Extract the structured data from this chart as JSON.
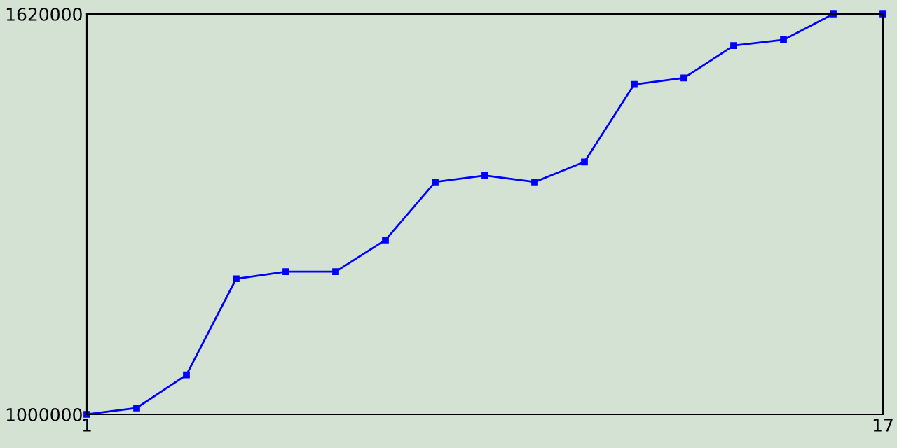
{
  "chart_data": {
    "type": "line",
    "x": [
      1,
      2,
      3,
      4,
      5,
      6,
      7,
      8,
      9,
      10,
      11,
      12,
      13,
      14,
      15,
      16,
      17
    ],
    "series": [
      {
        "color": "#0000ff",
        "values": [
          1000000,
          1010000,
          1061000,
          1210000,
          1221000,
          1221000,
          1270000,
          1360000,
          1370000,
          1360000,
          1391000,
          1511000,
          1521000,
          1571000,
          1580000,
          1620000,
          1620000
        ]
      }
    ],
    "xlim": [
      1,
      17
    ],
    "ylim": [
      1000000,
      1620000
    ],
    "xticks": [
      1,
      17
    ],
    "yticks": [
      1000000,
      1620000
    ],
    "marker": "square",
    "line_style": "solid",
    "grid": false,
    "legend": false
  }
}
